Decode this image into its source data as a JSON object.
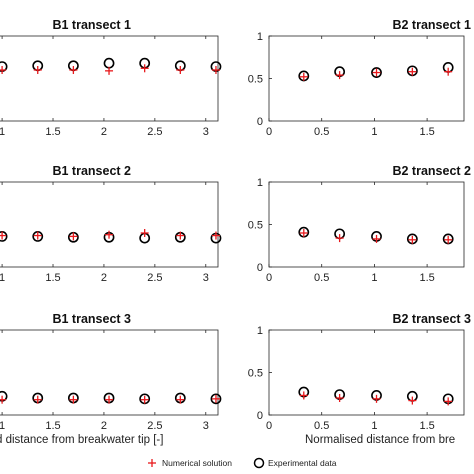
{
  "chart_data": [
    {
      "type": "scatter",
      "title": "B1 transect 1",
      "xlabel": "",
      "xlim": [
        0.95,
        3.12
      ],
      "ylim": [
        0,
        1
      ],
      "xticks": [
        "1",
        "1.5",
        "2",
        "2.5",
        "3"
      ],
      "yticks": [],
      "series": [
        {
          "name": "Numerical solution",
          "x": [
            1.0,
            1.35,
            1.7,
            2.05,
            2.4,
            2.75,
            3.1
          ],
          "y": [
            0.6,
            0.6,
            0.6,
            0.59,
            0.62,
            0.6,
            0.6
          ]
        },
        {
          "name": "Experimental data",
          "x": [
            1.0,
            1.35,
            1.7,
            2.05,
            2.4,
            2.75,
            3.1
          ],
          "y": [
            0.64,
            0.65,
            0.65,
            0.68,
            0.68,
            0.65,
            0.64
          ]
        }
      ]
    },
    {
      "type": "scatter",
      "title": "B2 transect 1",
      "xlabel": "",
      "xlim": [
        0,
        1.85
      ],
      "ylim": [
        0,
        1
      ],
      "xticks": [
        "0",
        "0.5",
        "1",
        "1.5"
      ],
      "yticks": [
        "0",
        "0.5",
        "1"
      ],
      "series": [
        {
          "name": "Numerical solution",
          "x": [
            0.33,
            0.67,
            1.02,
            1.36,
            1.7
          ],
          "y": [
            0.52,
            0.54,
            0.57,
            0.58,
            0.58
          ]
        },
        {
          "name": "Experimental data",
          "x": [
            0.33,
            0.67,
            1.02,
            1.36,
            1.7
          ],
          "y": [
            0.53,
            0.58,
            0.57,
            0.59,
            0.63
          ]
        }
      ]
    },
    {
      "type": "scatter",
      "title": "B1 transect 2",
      "xlabel": "",
      "xlim": [
        0.95,
        3.12
      ],
      "ylim": [
        0,
        1
      ],
      "xticks": [
        "1",
        "1.5",
        "2",
        "2.5",
        "3"
      ],
      "yticks": [],
      "series": [
        {
          "name": "Numerical solution",
          "x": [
            1.0,
            1.35,
            1.7,
            2.05,
            2.4,
            2.75,
            3.1
          ],
          "y": [
            0.37,
            0.37,
            0.36,
            0.38,
            0.4,
            0.37,
            0.37
          ]
        },
        {
          "name": "Experimental data",
          "x": [
            1.0,
            1.35,
            1.7,
            2.05,
            2.4,
            2.75,
            3.1
          ],
          "y": [
            0.36,
            0.36,
            0.35,
            0.35,
            0.34,
            0.35,
            0.34
          ]
        }
      ]
    },
    {
      "type": "scatter",
      "title": "B2 transect 2",
      "xlabel": "",
      "xlim": [
        0,
        1.85
      ],
      "ylim": [
        0,
        1
      ],
      "xticks": [
        "0",
        "0.5",
        "1",
        "1.5"
      ],
      "yticks": [
        "0",
        "0.5",
        "1"
      ],
      "series": [
        {
          "name": "Numerical solution",
          "x": [
            0.33,
            0.67,
            1.02,
            1.36,
            1.7
          ],
          "y": [
            0.4,
            0.34,
            0.33,
            0.32,
            0.32
          ]
        },
        {
          "name": "Experimental data",
          "x": [
            0.33,
            0.67,
            1.02,
            1.36,
            1.7
          ],
          "y": [
            0.41,
            0.39,
            0.36,
            0.33,
            0.33
          ]
        }
      ]
    },
    {
      "type": "scatter",
      "title": "B1 transect 3",
      "xlabel": "d distance from breakwater tip [-]",
      "xlim": [
        0.95,
        3.12
      ],
      "ylim": [
        0,
        1
      ],
      "xticks": [
        "1",
        "1.5",
        "2",
        "2.5",
        "3"
      ],
      "yticks": [],
      "series": [
        {
          "name": "Numerical solution",
          "x": [
            1.0,
            1.35,
            1.7,
            2.05,
            2.4,
            2.75,
            3.1
          ],
          "y": [
            0.18,
            0.18,
            0.18,
            0.18,
            0.18,
            0.18,
            0.19
          ]
        },
        {
          "name": "Experimental data",
          "x": [
            1.0,
            1.35,
            1.7,
            2.05,
            2.4,
            2.75,
            3.1
          ],
          "y": [
            0.22,
            0.2,
            0.2,
            0.2,
            0.19,
            0.2,
            0.19
          ]
        }
      ]
    },
    {
      "type": "scatter",
      "title": "B2 transect 3",
      "xlabel": "Normalised distance from bre",
      "xlim": [
        0,
        1.85
      ],
      "ylim": [
        0,
        1
      ],
      "xticks": [
        "0",
        "0.5",
        "1",
        "1.5"
      ],
      "yticks": [
        "0",
        "0.5",
        "1"
      ],
      "series": [
        {
          "name": "Numerical solution",
          "x": [
            0.33,
            0.67,
            1.02,
            1.36,
            1.7
          ],
          "y": [
            0.23,
            0.2,
            0.19,
            0.17,
            0.16
          ]
        },
        {
          "name": "Experimental data",
          "x": [
            0.33,
            0.67,
            1.02,
            1.36,
            1.7
          ],
          "y": [
            0.27,
            0.24,
            0.23,
            0.22,
            0.19
          ]
        }
      ]
    }
  ],
  "legend": {
    "items": [
      {
        "label": "Numerical solution",
        "marker": "plus",
        "color": "#e8191c"
      },
      {
        "label": "Experimental data",
        "marker": "circle",
        "color": "#000000"
      }
    ]
  },
  "colors": {
    "numerical": "#e8191c",
    "experimental": "#000000",
    "axes": "#262626"
  }
}
